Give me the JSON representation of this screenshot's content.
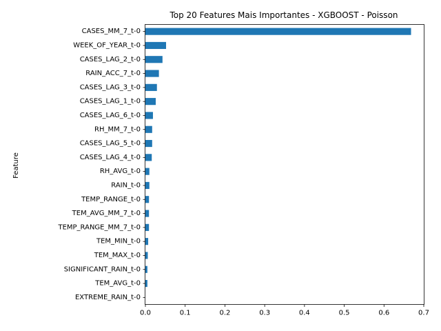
{
  "chart_data": {
    "type": "bar",
    "orientation": "horizontal",
    "title": "Top 20 Features Mais Importantes - XGBOOST - Poisson",
    "xlabel": "",
    "ylabel": "Feature",
    "xlim": [
      0,
      0.7
    ],
    "xticks": [
      "0.0",
      "0.1",
      "0.2",
      "0.3",
      "0.4",
      "0.5",
      "0.6",
      "0.7"
    ],
    "grid": false,
    "bar_color": "#1f77b4",
    "categories": [
      "CASES_MM_7_t-0",
      "WEEK_OF_YEAR_t-0",
      "CASES_LAG_2_t-0",
      "RAIN_ACC_7_t-0",
      "CASES_LAG_3_t-0",
      "CASES_LAG_1_t-0",
      "CASES_LAG_6_t-0",
      "RH_MM_7_t-0",
      "CASES_LAG_5_t-0",
      "CASES_LAG_4_t-0",
      "RH_AVG_t-0",
      "RAIN_t-0",
      "TEMP_RANGE_t-0",
      "TEM_AVG_MM_7_t-0",
      "TEMP_RANGE_MM_7_t-0",
      "TEM_MIN_t-0",
      "TEM_MAX_t-0",
      "SIGNIFICANT_RAIN_t-0",
      "TEM_AVG_t-0",
      "EXTREME_RAIN_t-0"
    ],
    "values": [
      0.668,
      0.052,
      0.043,
      0.034,
      0.029,
      0.026,
      0.019,
      0.017,
      0.017,
      0.016,
      0.01,
      0.01,
      0.009,
      0.009,
      0.009,
      0.007,
      0.006,
      0.005,
      0.005,
      0.0
    ]
  }
}
